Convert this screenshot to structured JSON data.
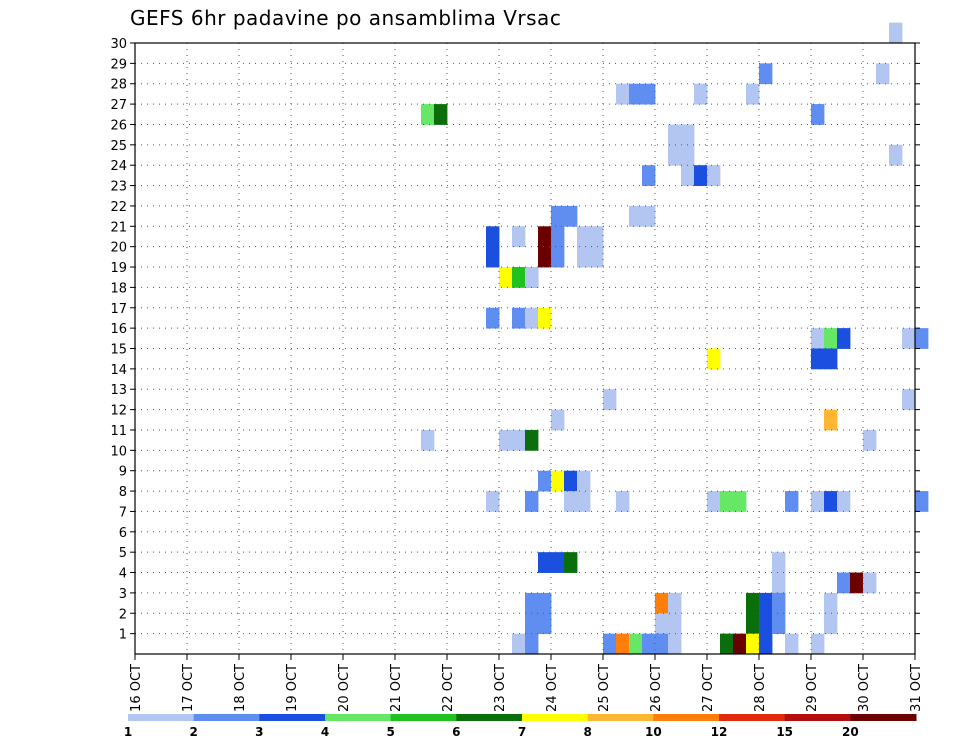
{
  "chart_data": {
    "type": "heatmap",
    "title": "GEFS 6hr padavine po ansamblima Vrsac",
    "xlabel": "",
    "ylabel": "",
    "x_range": [
      "2020-10-16T00",
      "2020-10-31T00"
    ],
    "x_step_hours": 6,
    "x_ticks": [
      "16 OCT",
      "17 OCT",
      "18 OCT",
      "19 OCT",
      "20 OCT",
      "21 OCT",
      "22 OCT",
      "23 OCT",
      "24 OCT",
      "25 OCT",
      "26 OCT",
      "27 OCT",
      "28 OCT",
      "29 OCT",
      "30 OCT",
      "31 OCT"
    ],
    "y_ticks": [
      1,
      2,
      3,
      4,
      5,
      6,
      7,
      8,
      9,
      10,
      11,
      12,
      13,
      14,
      15,
      16,
      17,
      18,
      19,
      20,
      21,
      22,
      23,
      24,
      25,
      26,
      27,
      28,
      29,
      30
    ],
    "y_range": [
      0,
      30
    ],
    "grid": true,
    "legend_placement": "bottom",
    "legend": {
      "colors": [
        "#b3c6f2",
        "#5f8ef0",
        "#1a4fe0",
        "#66e866",
        "#1fc21f",
        "#0a6e0a",
        "#ffff00",
        "#ffb733",
        "#ff7f0a",
        "#e02a0a",
        "#b30f0f",
        "#6b0000"
      ],
      "labels": [
        "1",
        "2",
        "3",
        "4",
        "5",
        "6",
        "7",
        "8",
        "10",
        "12",
        "15",
        "20"
      ]
    },
    "cells": [
      [
        "2020-10-30T12",
        30,
        1
      ],
      [
        "2020-10-30T06",
        28,
        1
      ],
      [
        "2020-10-28T00",
        28,
        2
      ],
      [
        "2020-10-25T06",
        27,
        1
      ],
      [
        "2020-10-25T12",
        27,
        2
      ],
      [
        "2020-10-25T18",
        27,
        2
      ],
      [
        "2020-10-26T18",
        27,
        1
      ],
      [
        "2020-10-27T18",
        27,
        1
      ],
      [
        "2020-10-21T12",
        26,
        4
      ],
      [
        "2020-10-21T18",
        26,
        6
      ],
      [
        "2020-10-29T00",
        26,
        2
      ],
      [
        "2020-10-26T06",
        25,
        1
      ],
      [
        "2020-10-26T12",
        25,
        1
      ],
      [
        "2020-10-26T06",
        24,
        1
      ],
      [
        "2020-10-26T12",
        24,
        1
      ],
      [
        "2020-10-30T12",
        24,
        1
      ],
      [
        "2020-10-25T18",
        23,
        2
      ],
      [
        "2020-10-26T12",
        23,
        1
      ],
      [
        "2020-10-26T18",
        23,
        3
      ],
      [
        "2020-10-27T00",
        23,
        1
      ],
      [
        "2020-10-24T00",
        21,
        2
      ],
      [
        "2020-10-24T06",
        21,
        2
      ],
      [
        "2020-10-25T12",
        21,
        1
      ],
      [
        "2020-10-25T18",
        21,
        1
      ],
      [
        "2020-10-22T18",
        20,
        3
      ],
      [
        "2020-10-23T06",
        20,
        1
      ],
      [
        "2020-10-23T18",
        20,
        12
      ],
      [
        "2020-10-24T00",
        20,
        2
      ],
      [
        "2020-10-24T12",
        20,
        1
      ],
      [
        "2020-10-24T18",
        20,
        1
      ],
      [
        "2020-10-22T18",
        19,
        3
      ],
      [
        "2020-10-23T18",
        19,
        12
      ],
      [
        "2020-10-24T00",
        19,
        2
      ],
      [
        "2020-10-24T12",
        19,
        1
      ],
      [
        "2020-10-24T18",
        19,
        1
      ],
      [
        "2020-10-23T00",
        18,
        7
      ],
      [
        "2020-10-23T06",
        18,
        5
      ],
      [
        "2020-10-23T12",
        18,
        2
      ],
      [
        "2020-10-23T12",
        18,
        2
      ],
      [
        "2020-10-23T12",
        18,
        1
      ],
      [
        "2020-10-22T18",
        16,
        2
      ],
      [
        "2020-10-23T06",
        16,
        2
      ],
      [
        "2020-10-23T12",
        16,
        1
      ],
      [
        "2020-10-23T18",
        16,
        7
      ],
      [
        "2020-10-29T00",
        15,
        1
      ],
      [
        "2020-10-29T06",
        15,
        4
      ],
      [
        "2020-10-29T12",
        15,
        3
      ],
      [
        "2020-10-30T18",
        15,
        1
      ],
      [
        "2020-10-31T00",
        15,
        2
      ],
      [
        "2020-10-27T00",
        14,
        7
      ],
      [
        "2020-10-29T00",
        14,
        3
      ],
      [
        "2020-10-29T06",
        14,
        3
      ],
      [
        "2020-10-30T18",
        12,
        1
      ],
      [
        "2020-10-25T00",
        12,
        1
      ],
      [
        "2020-10-24T00",
        11,
        1
      ],
      [
        "2020-10-29T06",
        11,
        8
      ],
      [
        "2020-10-21T12",
        10,
        1
      ],
      [
        "2020-10-23T00",
        10,
        1
      ],
      [
        "2020-10-23T06",
        10,
        1
      ],
      [
        "2020-10-23T12",
        10,
        6
      ],
      [
        "2020-10-30T00",
        10,
        1
      ],
      [
        "2020-10-23T18",
        8,
        2
      ],
      [
        "2020-10-24T00",
        8,
        7
      ],
      [
        "2020-10-24T06",
        8,
        3
      ],
      [
        "2020-10-24T12",
        8,
        1
      ],
      [
        "2020-10-22T18",
        7,
        1
      ],
      [
        "2020-10-23T12",
        7,
        2
      ],
      [
        "2020-10-24T06",
        7,
        1
      ],
      [
        "2020-10-24T12",
        7,
        1
      ],
      [
        "2020-10-25T06",
        7,
        1
      ],
      [
        "2020-10-27T00",
        7,
        1
      ],
      [
        "2020-10-27T06",
        7,
        4
      ],
      [
        "2020-10-27T12",
        7,
        4
      ],
      [
        "2020-10-28T12",
        7,
        2
      ],
      [
        "2020-10-29T00",
        7,
        1
      ],
      [
        "2020-10-29T06",
        7,
        3
      ],
      [
        "2020-10-29T12",
        7,
        1
      ],
      [
        "2020-10-31T00",
        7,
        2
      ],
      [
        "2020-10-23T18",
        4,
        3
      ],
      [
        "2020-10-24T00",
        4,
        3
      ],
      [
        "2020-10-24T06",
        4,
        6
      ],
      [
        "2020-10-28T06",
        4,
        1
      ],
      [
        "2020-10-28T06",
        3,
        1
      ],
      [
        "2020-10-29T12",
        3,
        2
      ],
      [
        "2020-10-29T18",
        3,
        12
      ],
      [
        "2020-10-30T00",
        3,
        1
      ],
      [
        "2020-10-23T12",
        2,
        2
      ],
      [
        "2020-10-23T18",
        2,
        2
      ],
      [
        "2020-10-26T00",
        2,
        9
      ],
      [
        "2020-10-26T06",
        2,
        1
      ],
      [
        "2020-10-27T18",
        2,
        6
      ],
      [
        "2020-10-28T00",
        2,
        3
      ],
      [
        "2020-10-28T06",
        2,
        2
      ],
      [
        "2020-10-29T06",
        2,
        1
      ],
      [
        "2020-10-23T12",
        1,
        2
      ],
      [
        "2020-10-23T18",
        1,
        2
      ],
      [
        "2020-10-26T00",
        1,
        1
      ],
      [
        "2020-10-26T06",
        1,
        1
      ],
      [
        "2020-10-27T18",
        1,
        6
      ],
      [
        "2020-10-28T00",
        1,
        3
      ],
      [
        "2020-10-28T06",
        1,
        2
      ],
      [
        "2020-10-29T06",
        1,
        1
      ],
      [
        "2020-10-23T06",
        0,
        1
      ],
      [
        "2020-10-23T12",
        0,
        2
      ],
      [
        "2020-10-25T00",
        0,
        2
      ],
      [
        "2020-10-25T06",
        0,
        9
      ],
      [
        "2020-10-25T12",
        0,
        4
      ],
      [
        "2020-10-25T18",
        0,
        2
      ],
      [
        "2020-10-26T00",
        0,
        2
      ],
      [
        "2020-10-26T06",
        0,
        1
      ],
      [
        "2020-10-27T06",
        0,
        6
      ],
      [
        "2020-10-27T12",
        0,
        12
      ],
      [
        "2020-10-27T18",
        0,
        7
      ],
      [
        "2020-10-28T00",
        0,
        3
      ],
      [
        "2020-10-28T12",
        0,
        1
      ],
      [
        "2020-10-29T00",
        0,
        1
      ]
    ]
  }
}
